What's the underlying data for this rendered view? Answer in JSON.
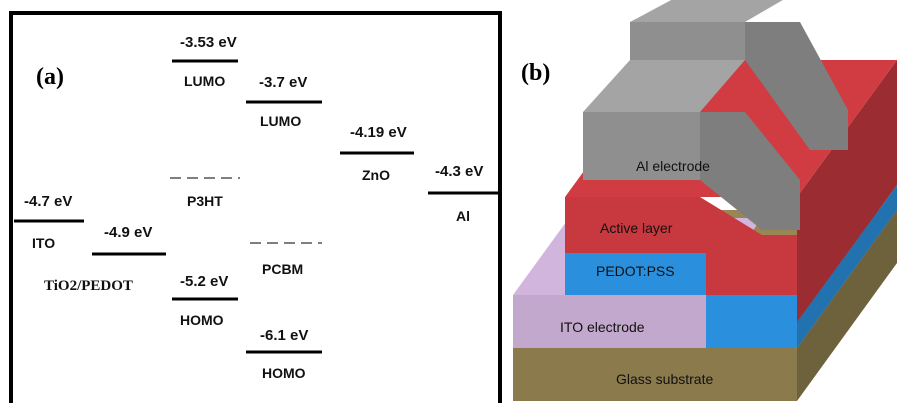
{
  "panel_a": {
    "label": "(a)",
    "levels": {
      "ito_value": "-4.7 eV",
      "ito_name": "ITO",
      "tio2_value": "-4.9 eV",
      "tio2_name": "TiO2/PEDOT",
      "p3ht_lumo_value": "-3.53 eV",
      "p3ht_lumo_name": "LUMO",
      "p3ht_name": "P3HT",
      "p3ht_homo_value": "-5.2 eV",
      "p3ht_homo_name": "HOMO",
      "pcbm_lumo_value": "-3.7 eV",
      "pcbm_lumo_name": "LUMO",
      "pcbm_name": "PCBM",
      "pcbm_homo_value": "-6.1 eV",
      "pcbm_homo_name": "HOMO",
      "zno_value": "-4.19 eV",
      "zno_name": "ZnO",
      "al_value": "-4.3 eV",
      "al_name": "Al"
    }
  },
  "panel_b": {
    "label": "(b)",
    "layers": {
      "al_electrode": "Al electrode",
      "active_layer": "Active layer",
      "pedot_pss": "PEDOT:PSS",
      "ito_electrode": "ITO electrode",
      "glass_substrate": "Glass substrate"
    },
    "colors": {
      "glass": "#8a7a4c",
      "ito": "#c2a8cc",
      "pedot": "#2a8fdc",
      "active": "#c7383f",
      "al": "#8f8f8f"
    }
  }
}
